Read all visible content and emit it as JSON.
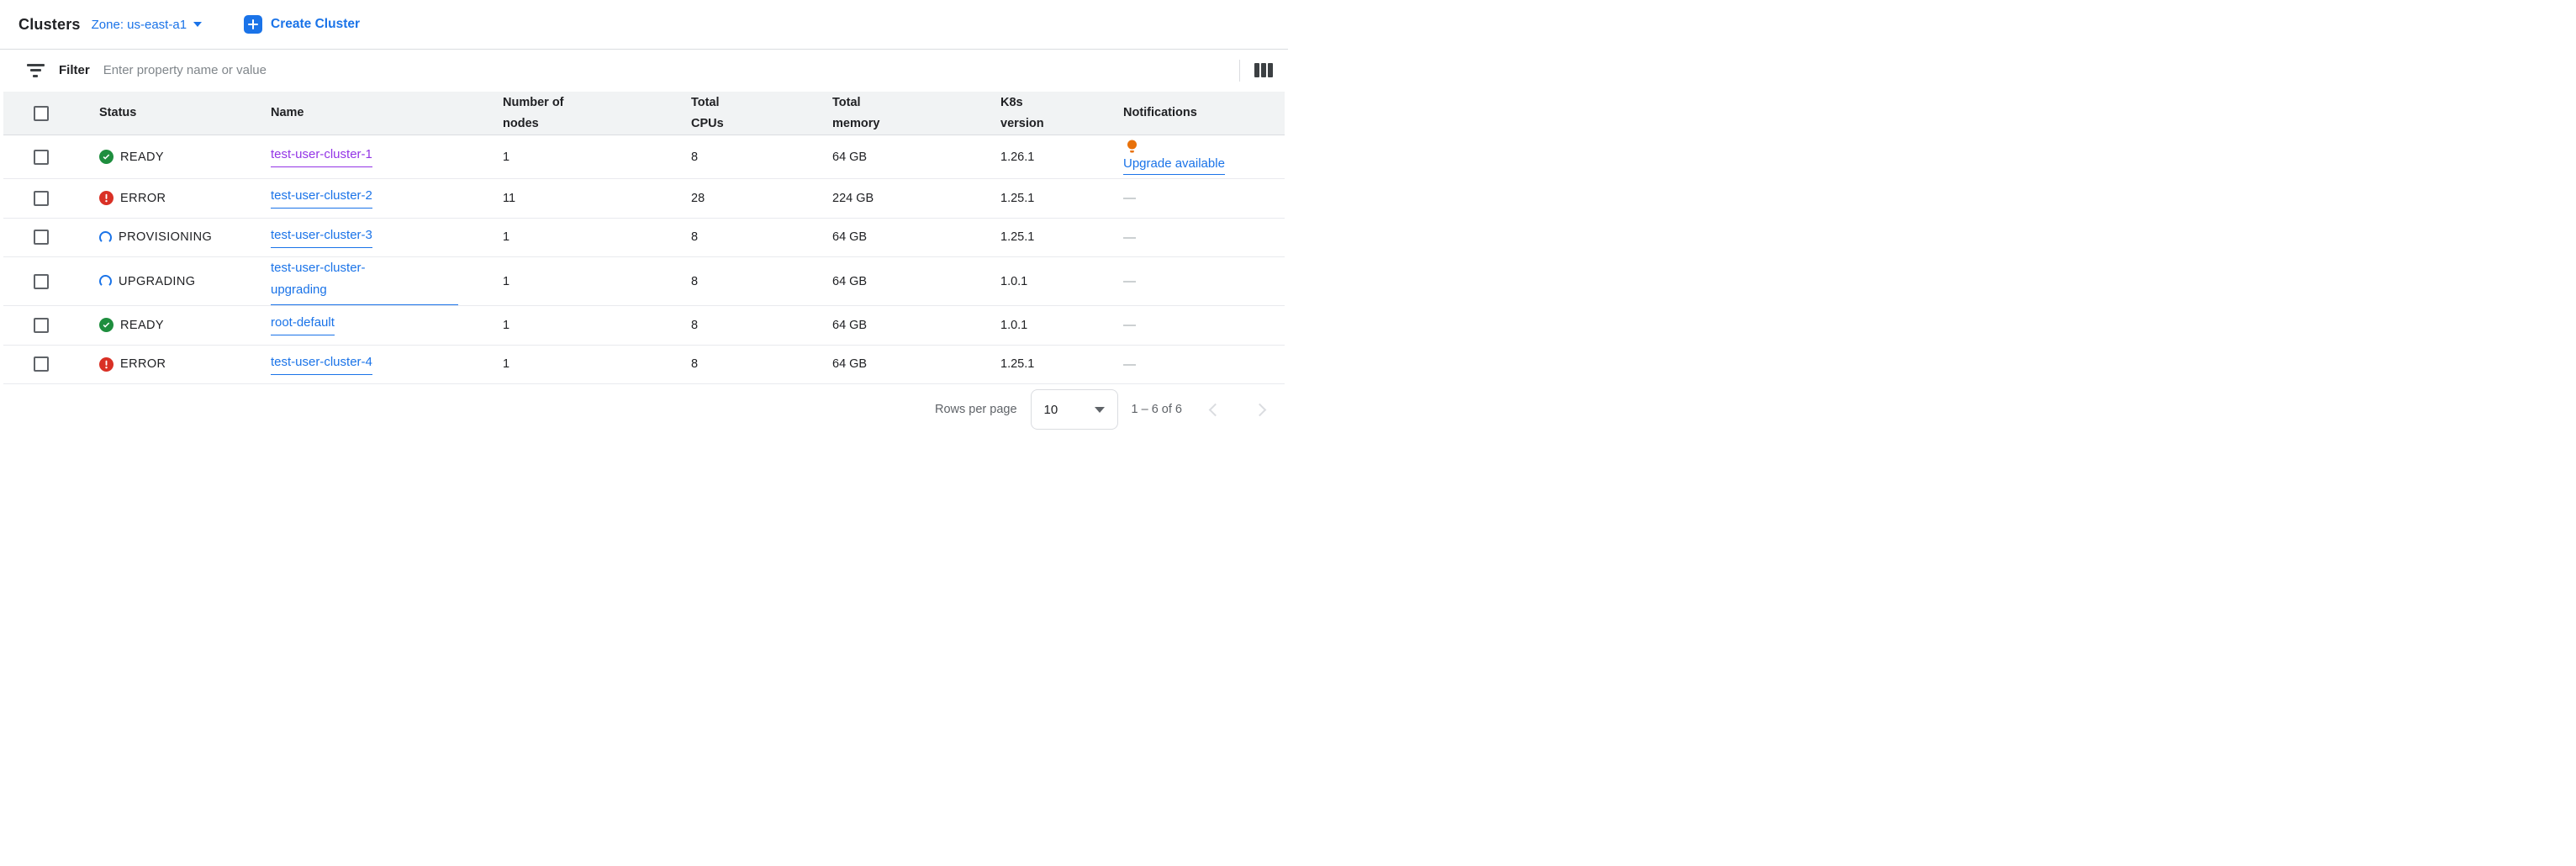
{
  "header": {
    "title": "Clusters",
    "zone_label": "Zone: us-east-a1",
    "create_button_label": "Create Cluster"
  },
  "filter": {
    "label": "Filter",
    "placeholder": "Enter property name or value"
  },
  "table": {
    "columns": [
      "Status",
      "Name",
      "Number of nodes",
      "Total CPUs",
      "Total memory",
      "K8s version",
      "Notifications"
    ],
    "rows": [
      {
        "status": "READY",
        "name": "test-user-cluster-1",
        "visited": true,
        "nodes": "1",
        "cpus": "8",
        "memory": "64 GB",
        "k8s_version": "1.26.1",
        "notification": "Upgrade available"
      },
      {
        "status": "ERROR",
        "name": "test-user-cluster-2",
        "visited": false,
        "nodes": "11",
        "cpus": "28",
        "memory": "224 GB",
        "k8s_version": "1.25.1",
        "notification": "—"
      },
      {
        "status": "PROVISIONING",
        "name": "test-user-cluster-3",
        "visited": false,
        "nodes": "1",
        "cpus": "8",
        "memory": "64 GB",
        "k8s_version": "1.25.1",
        "notification": "—"
      },
      {
        "status": "UPGRADING",
        "name": "test-user-cluster-upgrading",
        "visited": false,
        "nodes": "1",
        "cpus": "8",
        "memory": "64 GB",
        "k8s_version": "1.0.1",
        "notification": "—"
      },
      {
        "status": "READY",
        "name": "root-default",
        "visited": false,
        "nodes": "1",
        "cpus": "8",
        "memory": "64 GB",
        "k8s_version": "1.0.1",
        "notification": "—"
      },
      {
        "status": "ERROR",
        "name": "test-user-cluster-4",
        "visited": false,
        "nodes": "1",
        "cpus": "8",
        "memory": "64 GB",
        "k8s_version": "1.25.1",
        "notification": "—"
      }
    ]
  },
  "pagination": {
    "rows_per_page_label": "Rows per page",
    "rows_per_page_value": "10",
    "range_label": "1 – 6 of 6"
  },
  "colors": {
    "accent_blue": "#1A73E8",
    "visited_purple": "#9334E6",
    "status_green": "#1E8E3E",
    "status_red": "#D93025",
    "bulb_orange": "#E8710A"
  }
}
